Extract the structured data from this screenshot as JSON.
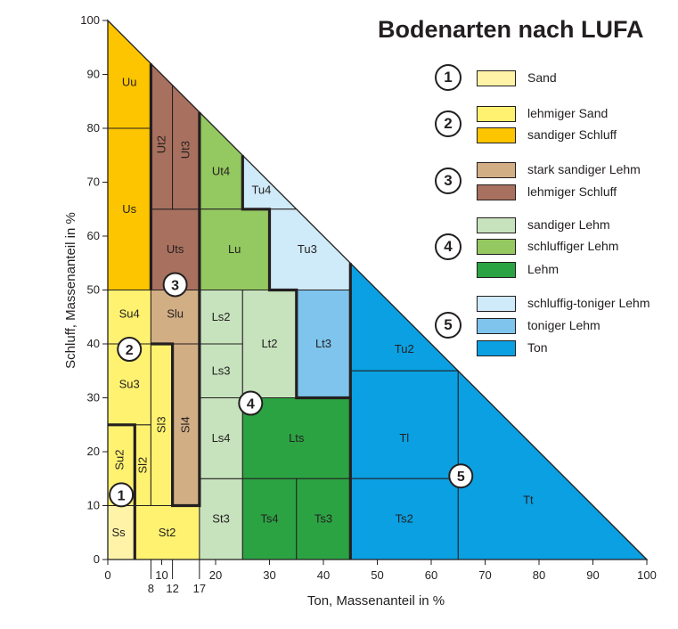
{
  "chart_data": {
    "type": "ternary-texture-triangle",
    "title": "Bodenarten nach LUFA",
    "xlabel": "Ton, Massenanteil in %",
    "ylabel": "Schluff, Massenanteil in %",
    "xlim": [
      0,
      100
    ],
    "ylim": [
      0,
      100
    ],
    "x_ticks": [
      "0",
      "10",
      "20",
      "30",
      "40",
      "50",
      "60",
      "70",
      "80",
      "90",
      "100"
    ],
    "x_extra_ticks": [
      "8",
      "12",
      "17"
    ],
    "y_ticks": [
      "0",
      "10",
      "20",
      "30",
      "40",
      "50",
      "60",
      "70",
      "80",
      "90",
      "100"
    ],
    "colors": {
      "sand": "#fff3a8",
      "lehmiger_sand": "#fff270",
      "sandiger_schluff": "#fdc500",
      "stark_sandiger_lehm": "#d2ae85",
      "lehmiger_schluff": "#a8705e",
      "sandiger_lehm": "#c6e3bd",
      "schluffiger_lehm": "#94c860",
      "lehm": "#2ca343",
      "schluffig_toniger_lehm": "#cfeaf8",
      "toniger_lehm": "#7ec4ec",
      "ton": "#0aa0e2"
    },
    "regions": [
      {
        "label": "Ss",
        "group": 1,
        "color_key": "sand",
        "polygon": [
          [
            0,
            0
          ],
          [
            5,
            0
          ],
          [
            5,
            10
          ],
          [
            0,
            10
          ]
        ],
        "label_at": [
          2,
          5
        ]
      },
      {
        "label": "Su2",
        "group": 2,
        "color_key": "lehmiger_sand",
        "polygon": [
          [
            0,
            10
          ],
          [
            5,
            10
          ],
          [
            5,
            25
          ],
          [
            0,
            25
          ]
        ],
        "label_at": [
          2.2,
          18.5
        ]
      },
      {
        "label": "Sl2",
        "group": 2,
        "color_key": "lehmiger_sand",
        "polygon": [
          [
            5,
            10
          ],
          [
            8,
            10
          ],
          [
            8,
            25
          ],
          [
            5,
            25
          ]
        ],
        "label_at": [
          6.5,
          17.5
        ]
      },
      {
        "label": "Su3",
        "group": 2,
        "color_key": "lehmiger_sand",
        "polygon": [
          [
            0,
            25
          ],
          [
            8,
            25
          ],
          [
            8,
            40
          ],
          [
            0,
            40
          ]
        ],
        "label_at": [
          4,
          32.5
        ]
      },
      {
        "label": "Su4",
        "group": 2,
        "color_key": "lehmiger_sand",
        "polygon": [
          [
            0,
            40
          ],
          [
            8,
            40
          ],
          [
            8,
            50
          ],
          [
            0,
            50
          ]
        ],
        "label_at": [
          4,
          45.5
        ]
      },
      {
        "label": "Sl3",
        "group": 2,
        "color_key": "lehmiger_sand",
        "polygon": [
          [
            8,
            10
          ],
          [
            12,
            10
          ],
          [
            12,
            40
          ],
          [
            8,
            40
          ]
        ],
        "label_at": [
          10,
          25
        ]
      },
      {
        "label": "St2",
        "group": 2,
        "color_key": "lehmiger_sand",
        "polygon": [
          [
            5,
            0
          ],
          [
            17,
            0
          ],
          [
            17,
            10
          ],
          [
            5,
            10
          ]
        ],
        "label_at": [
          11,
          5
        ]
      },
      {
        "label": "Us",
        "group": 2,
        "color_key": "sandiger_schluff",
        "polygon": [
          [
            0,
            50
          ],
          [
            8,
            50
          ],
          [
            8,
            80
          ],
          [
            0,
            80
          ]
        ],
        "label_at": [
          4,
          65
        ]
      },
      {
        "label": "Uu",
        "group": 2,
        "color_key": "sandiger_schluff",
        "polygon": [
          [
            0,
            80
          ],
          [
            8,
            80
          ],
          [
            8,
            92
          ],
          [
            0,
            100
          ]
        ],
        "label_at": [
          4,
          88.5
        ]
      },
      {
        "label": "Slu",
        "group": 3,
        "color_key": "stark_sandiger_lehm",
        "polygon": [
          [
            8,
            40
          ],
          [
            17,
            40
          ],
          [
            17,
            50
          ],
          [
            8,
            50
          ]
        ],
        "label_at": [
          12.5,
          45.5
        ]
      },
      {
        "label": "Sl4",
        "group": 3,
        "color_key": "stark_sandiger_lehm",
        "polygon": [
          [
            12,
            10
          ],
          [
            17,
            10
          ],
          [
            17,
            40
          ],
          [
            12,
            40
          ]
        ],
        "label_at": [
          14.5,
          25
        ]
      },
      {
        "label": "Uts",
        "group": 3,
        "color_key": "lehmiger_schluff",
        "polygon": [
          [
            8,
            50
          ],
          [
            17,
            50
          ],
          [
            17,
            65
          ],
          [
            8,
            65
          ]
        ],
        "label_at": [
          12.5,
          57.5
        ]
      },
      {
        "label": "Ut2",
        "group": 3,
        "color_key": "lehmiger_schluff",
        "polygon": [
          [
            8,
            65
          ],
          [
            12,
            65
          ],
          [
            12,
            88
          ],
          [
            8,
            92
          ]
        ],
        "label_at": [
          10,
          77
        ]
      },
      {
        "label": "Ut3",
        "group": 3,
        "color_key": "lehmiger_schluff",
        "polygon": [
          [
            12,
            65
          ],
          [
            17,
            65
          ],
          [
            17,
            83
          ],
          [
            12,
            88
          ]
        ],
        "label_at": [
          14.5,
          76
        ]
      },
      {
        "label": "St3",
        "group": 4,
        "color_key": "sandiger_lehm",
        "polygon": [
          [
            17,
            0
          ],
          [
            25,
            0
          ],
          [
            25,
            15
          ],
          [
            17,
            15
          ]
        ],
        "label_at": [
          21,
          7.5
        ]
      },
      {
        "label": "Ls4",
        "group": 4,
        "color_key": "sandiger_lehm",
        "polygon": [
          [
            17,
            15
          ],
          [
            25,
            15
          ],
          [
            25,
            30
          ],
          [
            17,
            30
          ]
        ],
        "label_at": [
          21,
          22.5
        ]
      },
      {
        "label": "Ls3",
        "group": 4,
        "color_key": "sandiger_lehm",
        "polygon": [
          [
            17,
            30
          ],
          [
            25,
            30
          ],
          [
            25,
            40
          ],
          [
            17,
            40
          ]
        ],
        "label_at": [
          21,
          35
        ]
      },
      {
        "label": "Ls2",
        "group": 4,
        "color_key": "sandiger_lehm",
        "polygon": [
          [
            17,
            40
          ],
          [
            25,
            40
          ],
          [
            25,
            50
          ],
          [
            17,
            50
          ]
        ],
        "label_at": [
          21,
          45
        ]
      },
      {
        "label": "Lt2",
        "group": 4,
        "color_key": "sandiger_lehm",
        "polygon": [
          [
            25,
            30
          ],
          [
            35,
            30
          ],
          [
            35,
            50
          ],
          [
            25,
            50
          ]
        ],
        "label_at": [
          30,
          40
        ]
      },
      {
        "label": "Ut4",
        "group": 4,
        "color_key": "schluffiger_lehm",
        "polygon": [
          [
            17,
            65
          ],
          [
            25,
            65
          ],
          [
            25,
            75
          ],
          [
            17,
            83
          ]
        ],
        "label_at": [
          21,
          72
        ]
      },
      {
        "label": "Lu",
        "group": 4,
        "color_key": "schluffiger_lehm",
        "polygon": [
          [
            17,
            50
          ],
          [
            30,
            50
          ],
          [
            30,
            65
          ],
          [
            17,
            65
          ]
        ],
        "label_at": [
          23.5,
          57.5
        ]
      },
      {
        "label": "Lts",
        "group": 4,
        "color_key": "lehm",
        "polygon": [
          [
            25,
            15
          ],
          [
            45,
            15
          ],
          [
            45,
            30
          ],
          [
            25,
            30
          ]
        ],
        "label_at": [
          35,
          22.5
        ]
      },
      {
        "label": "Ts4",
        "group": 4,
        "color_key": "lehm",
        "polygon": [
          [
            25,
            0
          ],
          [
            35,
            0
          ],
          [
            35,
            15
          ],
          [
            25,
            15
          ]
        ],
        "label_at": [
          30,
          7.5
        ]
      },
      {
        "label": "Ts3",
        "group": 4,
        "color_key": "lehm",
        "polygon": [
          [
            35,
            0
          ],
          [
            45,
            0
          ],
          [
            45,
            15
          ],
          [
            35,
            15
          ]
        ],
        "label_at": [
          40,
          7.5
        ]
      },
      {
        "label": "Tu4",
        "group": 5,
        "color_key": "schluffig_toniger_lehm",
        "polygon": [
          [
            25,
            65
          ],
          [
            35,
            65
          ],
          [
            25,
            75
          ]
        ],
        "label_at": [
          28.5,
          68.5
        ]
      },
      {
        "label": "Tu3",
        "group": 5,
        "color_key": "schluffig_toniger_lehm",
        "polygon": [
          [
            30,
            50
          ],
          [
            45,
            50
          ],
          [
            45,
            55
          ],
          [
            35,
            65
          ],
          [
            30,
            65
          ]
        ],
        "label_at": [
          37,
          57.5
        ]
      },
      {
        "label": "Lt3",
        "group": 5,
        "color_key": "toniger_lehm",
        "polygon": [
          [
            35,
            30
          ],
          [
            45,
            30
          ],
          [
            45,
            50
          ],
          [
            35,
            50
          ]
        ],
        "label_at": [
          40,
          40
        ]
      },
      {
        "label": "Tu2",
        "group": 5,
        "color_key": "ton",
        "polygon": [
          [
            45,
            35
          ],
          [
            65,
            35
          ],
          [
            65,
            35
          ],
          [
            45,
            55
          ]
        ],
        "label_at": [
          55,
          39
        ]
      },
      {
        "label": "Tl",
        "group": 5,
        "color_key": "ton",
        "polygon": [
          [
            45,
            15
          ],
          [
            65,
            15
          ],
          [
            65,
            35
          ],
          [
            45,
            35
          ]
        ],
        "label_at": [
          55,
          22.5
        ]
      },
      {
        "label": "Ts2",
        "group": 5,
        "color_key": "ton",
        "polygon": [
          [
            45,
            0
          ],
          [
            65,
            0
          ],
          [
            65,
            15
          ],
          [
            45,
            15
          ]
        ],
        "label_at": [
          55,
          7.5
        ]
      },
      {
        "label": "Tt",
        "group": 5,
        "color_key": "ton",
        "polygon": [
          [
            65,
            0
          ],
          [
            100,
            0
          ],
          [
            65,
            35
          ]
        ],
        "label_at": [
          78,
          11
        ]
      }
    ],
    "group_markers": [
      {
        "number": "1",
        "at": [
          2.5,
          12
        ]
      },
      {
        "number": "2",
        "at": [
          4,
          39
        ]
      },
      {
        "number": "3",
        "at": [
          12.5,
          51
        ]
      },
      {
        "number": "4",
        "at": [
          26.5,
          29
        ]
      },
      {
        "number": "5",
        "at": [
          65.5,
          15.5
        ]
      }
    ],
    "boundary_lines": [
      [
        [
          5,
          0
        ],
        [
          5,
          25
        ],
        [
          0,
          25
        ]
      ],
      [
        [
          8,
          50
        ],
        [
          8,
          92
        ]
      ],
      [
        [
          8,
          40
        ],
        [
          12,
          40
        ],
        [
          12,
          10
        ],
        [
          17,
          10
        ],
        [
          17,
          83
        ]
      ],
      [
        [
          25,
          75
        ],
        [
          25,
          65
        ],
        [
          30,
          65
        ],
        [
          30,
          50
        ],
        [
          35,
          50
        ],
        [
          35,
          30
        ],
        [
          45,
          30
        ],
        [
          45,
          55
        ]
      ],
      [
        [
          45,
          0
        ],
        [
          45,
          30
        ]
      ]
    ]
  },
  "legend": {
    "groups": [
      {
        "number": "1",
        "items": [
          {
            "label": "Sand",
            "color_key": "sand"
          }
        ]
      },
      {
        "number": "2",
        "items": [
          {
            "label": "lehmiger Sand",
            "color_key": "lehmiger_sand"
          },
          {
            "label": "sandiger Schluff",
            "color_key": "sandiger_schluff"
          }
        ]
      },
      {
        "number": "3",
        "items": [
          {
            "label": "stark sandiger Lehm",
            "color_key": "stark_sandiger_lehm"
          },
          {
            "label": "lehmiger Schluff",
            "color_key": "lehmiger_schluff"
          }
        ]
      },
      {
        "number": "4",
        "items": [
          {
            "label": "sandiger Lehm",
            "color_key": "sandiger_lehm"
          },
          {
            "label": "schluffiger Lehm",
            "color_key": "schluffiger_lehm"
          },
          {
            "label": "Lehm",
            "color_key": "lehm"
          }
        ]
      },
      {
        "number": "5",
        "items": [
          {
            "label": "schluffig-toniger Lehm",
            "color_key": "schluffig_toniger_lehm"
          },
          {
            "label": "toniger Lehm",
            "color_key": "toniger_lehm"
          },
          {
            "label": "Ton",
            "color_key": "ton"
          }
        ]
      }
    ]
  }
}
